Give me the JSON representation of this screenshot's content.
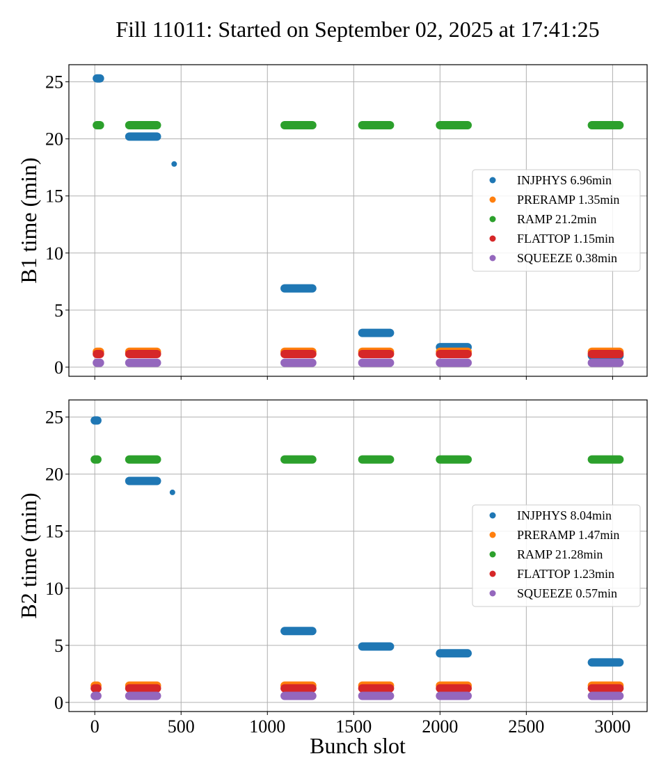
{
  "chart_data": [
    {
      "type": "scatter",
      "title": "Fill 11011: Started on September 02, 2025 at 17:41:25",
      "xlabel": "",
      "ylabel": "B1 time (min)",
      "xlim": [
        -150,
        3200
      ],
      "ylim": [
        -0.8,
        26.5
      ],
      "xticks": [
        0,
        500,
        1000,
        1500,
        2000,
        2500,
        3000
      ],
      "yticks": [
        0,
        5,
        10,
        15,
        20,
        25
      ],
      "grid": true,
      "legend_position": "center-right",
      "series": [
        {
          "name": "INJPHYS 6.96min",
          "color": "#1f77b4",
          "segments": [
            [
              12,
              30,
              25.3
            ],
            [
              200,
              360,
              20.2
            ],
            [
              460,
              460,
              17.8
            ],
            [
              1100,
              1260,
              6.9
            ],
            [
              1550,
              1710,
              3.0
            ],
            [
              2000,
              2160,
              1.75
            ],
            [
              2880,
              3040,
              1.0
            ]
          ]
        },
        {
          "name": "PRERAMP 1.35min",
          "color": "#ff7f0e",
          "segments": [
            [
              12,
              30,
              1.35
            ],
            [
              200,
              360,
              1.35
            ],
            [
              1100,
              1260,
              1.35
            ],
            [
              1550,
              1710,
              1.35
            ],
            [
              2000,
              2160,
              1.35
            ],
            [
              2880,
              3040,
              1.35
            ]
          ]
        },
        {
          "name": "RAMP 21.2min",
          "color": "#2ca02c",
          "segments": [
            [
              12,
              30,
              21.2
            ],
            [
              200,
              360,
              21.2
            ],
            [
              1100,
              1260,
              21.2
            ],
            [
              1550,
              1710,
              21.2
            ],
            [
              2000,
              2160,
              21.2
            ],
            [
              2880,
              3040,
              21.2
            ]
          ]
        },
        {
          "name": "FLATTOP 1.15min",
          "color": "#d62728",
          "segments": [
            [
              12,
              30,
              1.15
            ],
            [
              200,
              360,
              1.15
            ],
            [
              1100,
              1260,
              1.15
            ],
            [
              1550,
              1710,
              1.15
            ],
            [
              2000,
              2160,
              1.15
            ],
            [
              2880,
              3040,
              1.15
            ]
          ]
        },
        {
          "name": "SQUEEZE 0.38min",
          "color": "#9467bd",
          "segments": [
            [
              12,
              30,
              0.38
            ],
            [
              200,
              360,
              0.38
            ],
            [
              1100,
              1260,
              0.38
            ],
            [
              1550,
              1710,
              0.38
            ],
            [
              2000,
              2160,
              0.38
            ],
            [
              2880,
              3040,
              0.38
            ]
          ]
        }
      ]
    },
    {
      "type": "scatter",
      "title": "",
      "xlabel": "Bunch slot",
      "ylabel": "B2 time (min)",
      "xlim": [
        -150,
        3200
      ],
      "ylim": [
        -0.8,
        26.5
      ],
      "xticks": [
        0,
        500,
        1000,
        1500,
        2000,
        2500,
        3000
      ],
      "yticks": [
        0,
        5,
        10,
        15,
        20,
        25
      ],
      "grid": true,
      "legend_position": "center-right",
      "series": [
        {
          "name": "INJPHYS 8.04min",
          "color": "#1f77b4",
          "segments": [
            [
              0,
              15,
              24.7
            ],
            [
              200,
              360,
              19.4
            ],
            [
              450,
              450,
              18.4
            ],
            [
              1100,
              1260,
              6.25
            ],
            [
              1550,
              1710,
              4.9
            ],
            [
              2000,
              2160,
              4.3
            ],
            [
              2880,
              3040,
              3.5
            ]
          ]
        },
        {
          "name": "PRERAMP 1.47min",
          "color": "#ff7f0e",
          "segments": [
            [
              0,
              15,
              1.47
            ],
            [
              200,
              360,
              1.47
            ],
            [
              1100,
              1260,
              1.47
            ],
            [
              1550,
              1710,
              1.47
            ],
            [
              2000,
              2160,
              1.47
            ],
            [
              2880,
              3040,
              1.47
            ]
          ]
        },
        {
          "name": "RAMP 21.28min",
          "color": "#2ca02c",
          "segments": [
            [
              0,
              15,
              21.28
            ],
            [
              200,
              360,
              21.28
            ],
            [
              1100,
              1260,
              21.28
            ],
            [
              1550,
              1710,
              21.28
            ],
            [
              2000,
              2160,
              21.28
            ],
            [
              2880,
              3040,
              21.28
            ]
          ]
        },
        {
          "name": "FLATTOP 1.23min",
          "color": "#d62728",
          "segments": [
            [
              0,
              15,
              1.23
            ],
            [
              200,
              360,
              1.23
            ],
            [
              1100,
              1260,
              1.23
            ],
            [
              1550,
              1710,
              1.23
            ],
            [
              2000,
              2160,
              1.23
            ],
            [
              2880,
              3040,
              1.23
            ]
          ]
        },
        {
          "name": "SQUEEZE 0.57min",
          "color": "#9467bd",
          "segments": [
            [
              0,
              15,
              0.57
            ],
            [
              200,
              360,
              0.57
            ],
            [
              1100,
              1260,
              0.57
            ],
            [
              1550,
              1710,
              0.57
            ],
            [
              2000,
              2160,
              0.57
            ],
            [
              2880,
              3040,
              0.57
            ]
          ]
        }
      ]
    }
  ]
}
